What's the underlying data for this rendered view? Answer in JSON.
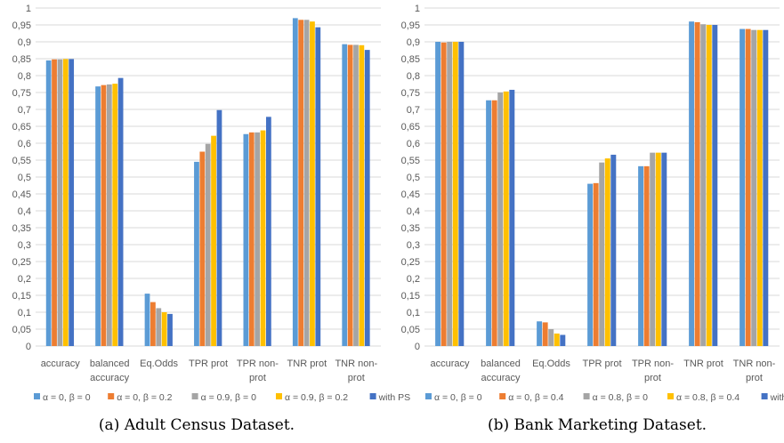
{
  "chart_data": [
    {
      "type": "bar",
      "caption": "(a) Adult Census Dataset.",
      "categories": [
        [
          "accuracy"
        ],
        [
          "balanced",
          "accuracy"
        ],
        [
          "Eq.Odds"
        ],
        [
          "TPR prot"
        ],
        [
          "TPR non-",
          "prot"
        ],
        [
          "TNR prot"
        ],
        [
          "TNR non-",
          "prot"
        ]
      ],
      "ylim": [
        0,
        1
      ],
      "yticks": [
        "0",
        "0,05",
        "0,1",
        "0,15",
        "0,2",
        "0,25",
        "0,3",
        "0,35",
        "0,4",
        "0,45",
        "0,5",
        "0,55",
        "0,6",
        "0,65",
        "0,7",
        "0,75",
        "0,8",
        "0,85",
        "0,9",
        "0,95",
        "1"
      ],
      "grid": true,
      "legend_position": "bottom",
      "series": [
        {
          "name": "α = 0, β = 0",
          "color": "#5b9bd5",
          "values": [
            0.845,
            0.768,
            0.155,
            0.545,
            0.627,
            0.97,
            0.893
          ]
        },
        {
          "name": "α = 0, β = 0.2",
          "color": "#ed7d31",
          "values": [
            0.848,
            0.772,
            0.13,
            0.575,
            0.632,
            0.965,
            0.891
          ]
        },
        {
          "name": "α = 0.9, β = 0",
          "color": "#a5a5a5",
          "values": [
            0.848,
            0.774,
            0.112,
            0.598,
            0.632,
            0.965,
            0.891
          ]
        },
        {
          "name": "α = 0.9, β = 0.2",
          "color": "#ffc000",
          "values": [
            0.849,
            0.776,
            0.1,
            0.622,
            0.638,
            0.96,
            0.89
          ]
        },
        {
          "name": "with PS",
          "color": "#4472c4",
          "values": [
            0.849,
            0.793,
            0.095,
            0.698,
            0.678,
            0.943,
            0.876
          ]
        }
      ]
    },
    {
      "type": "bar",
      "caption": "(b) Bank Marketing Dataset.",
      "categories": [
        [
          "accuracy"
        ],
        [
          "balanced",
          "accuracy"
        ],
        [
          "Eq.Odds"
        ],
        [
          "TPR prot"
        ],
        [
          "TPR non-",
          "prot"
        ],
        [
          "TNR prot"
        ],
        [
          "TNR non-",
          "prot"
        ]
      ],
      "ylim": [
        0,
        1
      ],
      "yticks": [
        "0",
        "0,05",
        "0,1",
        "0,15",
        "0,2",
        "0,25",
        "0,3",
        "0,35",
        "0,4",
        "0,45",
        "0,5",
        "0,55",
        "0,6",
        "0,65",
        "0,7",
        "0,75",
        "0,8",
        "0,85",
        "0,9",
        "0,95",
        "1"
      ],
      "grid": true,
      "legend_position": "bottom",
      "series": [
        {
          "name": "α = 0, β = 0",
          "color": "#5b9bd5",
          "values": [
            0.9,
            0.727,
            0.073,
            0.48,
            0.532,
            0.96,
            0.938
          ]
        },
        {
          "name": "α = 0, β = 0.4",
          "color": "#ed7d31",
          "values": [
            0.898,
            0.727,
            0.07,
            0.482,
            0.532,
            0.958,
            0.938
          ]
        },
        {
          "name": "α = 0.8, β = 0",
          "color": "#a5a5a5",
          "values": [
            0.9,
            0.75,
            0.05,
            0.543,
            0.572,
            0.952,
            0.935
          ]
        },
        {
          "name": "α = 0.8, β = 0.4",
          "color": "#ffc000",
          "values": [
            0.9,
            0.753,
            0.037,
            0.555,
            0.572,
            0.95,
            0.935
          ]
        },
        {
          "name": "with PS",
          "color": "#4472c4",
          "values": [
            0.9,
            0.758,
            0.033,
            0.566,
            0.572,
            0.95,
            0.935
          ]
        }
      ]
    }
  ]
}
